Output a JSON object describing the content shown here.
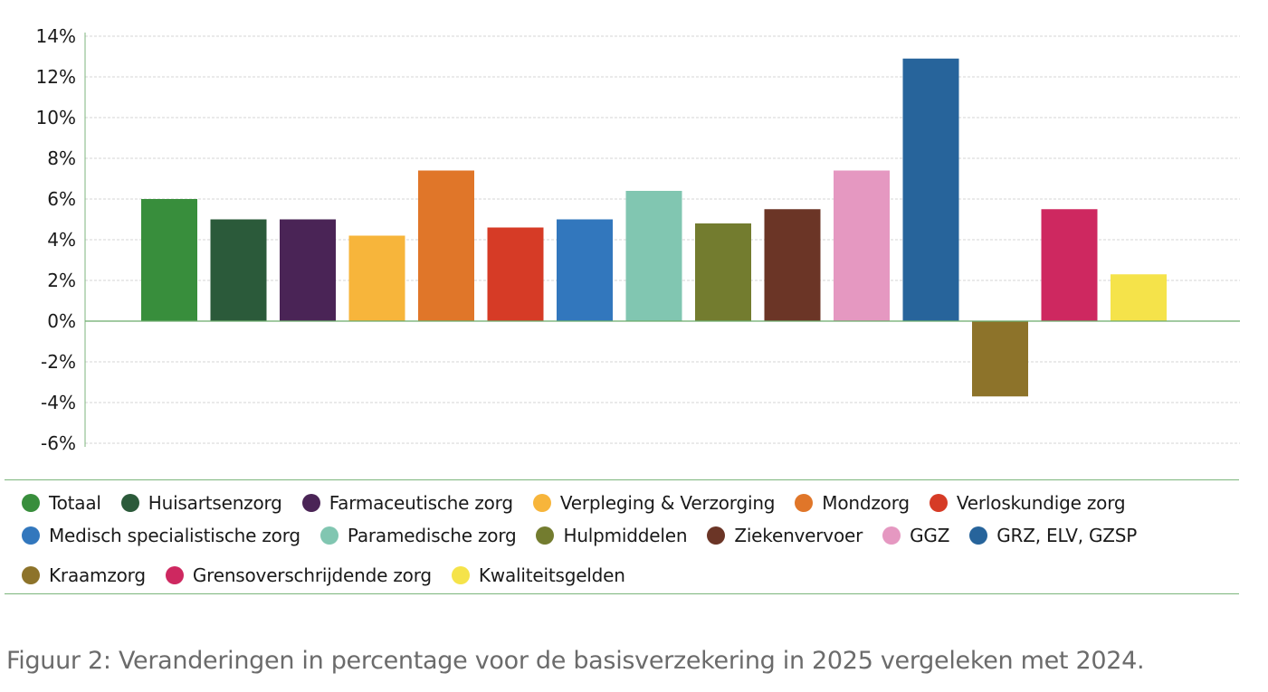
{
  "chart_data": {
    "type": "bar",
    "title": "",
    "xlabel": "",
    "ylabel": "",
    "ylim": [
      -6,
      14
    ],
    "yticks": [
      14,
      12,
      10,
      8,
      6,
      4,
      2,
      0,
      -2,
      -4,
      -6
    ],
    "ytick_labels": [
      "14%",
      "12%",
      "10%",
      "8%",
      "6%",
      "4%",
      "2%",
      "0%",
      "-2%",
      "-4%",
      "-6%"
    ],
    "grid": true,
    "legend_placement": "bottom",
    "categories": [
      "Totaal",
      "Huisartsenzorg",
      "Farmaceutische zorg",
      "Verpleging & Verzorging",
      "Mondzorg",
      "Verloskundige zorg",
      "Medisch specialistische zorg",
      "Paramedische zorg",
      "Hulpmiddelen",
      "Ziekenvervoer",
      "GGZ",
      "GRZ, ELV, GZSP",
      "Kraamzorg",
      "Grensoverschrijdende zorg",
      "Kwaliteitsgelden"
    ],
    "values": [
      6.0,
      5.0,
      5.0,
      4.2,
      7.4,
      4.6,
      5.0,
      6.4,
      4.8,
      5.5,
      7.4,
      12.9,
      -3.7,
      5.5,
      2.3
    ],
    "colors": [
      "#388e3c",
      "#2b5a3a",
      "#4a2456",
      "#f7b53b",
      "#e07629",
      "#d63b26",
      "#3277bd",
      "#81c6b1",
      "#737c2f",
      "#6b3526",
      "#e598c1",
      "#27649b",
      "#8d732a",
      "#ce2860",
      "#f5e34a"
    ]
  },
  "legend": [
    [
      "Totaal",
      "Huisartsenzorg",
      "Farmaceutische zorg",
      "Verpleging & Verzorging",
      "Mondzorg",
      "Verloskundige zorg"
    ],
    [
      "Medisch specialistische zorg",
      "Paramedische zorg",
      "Hulpmiddelen",
      "Ziekenvervoer",
      "GGZ",
      "GRZ, ELV, GZSP"
    ],
    [
      "Kraamzorg",
      "Grensoverschrijdende zorg",
      "Kwaliteitsgelden"
    ]
  ],
  "caption": "Figuur 2: Veranderingen in percentage voor de basisverzekering in 2025 vergeleken met 2024."
}
